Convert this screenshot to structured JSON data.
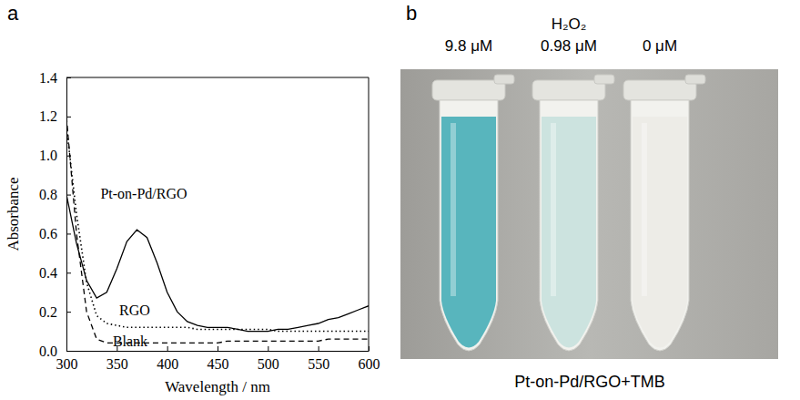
{
  "chart_data": {
    "type": "line",
    "panel_label": "a",
    "x_label": "Wavelength / nm",
    "y_label": "Absorbance",
    "x": [
      300,
      310,
      320,
      330,
      340,
      350,
      360,
      370,
      380,
      390,
      400,
      410,
      420,
      430,
      440,
      450,
      460,
      470,
      480,
      490,
      500,
      510,
      520,
      530,
      540,
      550,
      560,
      570,
      580,
      590,
      600
    ],
    "series": [
      {
        "name": "Pt-on-Pd/RGO",
        "color": "#000000",
        "line_style": "solid",
        "values": [
          0.8,
          0.55,
          0.36,
          0.27,
          0.3,
          0.42,
          0.56,
          0.62,
          0.58,
          0.45,
          0.3,
          0.2,
          0.15,
          0.13,
          0.12,
          0.12,
          0.12,
          0.11,
          0.1,
          0.1,
          0.1,
          0.11,
          0.11,
          0.12,
          0.13,
          0.14,
          0.16,
          0.17,
          0.19,
          0.21,
          0.23
        ]
      },
      {
        "name": "RGO",
        "color": "#000000",
        "line_style": "dotted",
        "values": [
          1.15,
          0.7,
          0.35,
          0.18,
          0.14,
          0.13,
          0.12,
          0.12,
          0.12,
          0.12,
          0.12,
          0.12,
          0.12,
          0.11,
          0.11,
          0.11,
          0.11,
          0.11,
          0.11,
          0.11,
          0.11,
          0.1,
          0.1,
          0.1,
          0.1,
          0.1,
          0.1,
          0.1,
          0.1,
          0.1,
          0.1
        ]
      },
      {
        "name": "Blank",
        "color": "#000000",
        "line_style": "dashed",
        "values": [
          1.2,
          0.6,
          0.2,
          0.06,
          0.04,
          0.04,
          0.04,
          0.04,
          0.04,
          0.04,
          0.04,
          0.04,
          0.04,
          0.04,
          0.04,
          0.04,
          0.05,
          0.05,
          0.05,
          0.05,
          0.05,
          0.05,
          0.05,
          0.05,
          0.05,
          0.05,
          0.06,
          0.06,
          0.06,
          0.06,
          0.06
        ]
      }
    ],
    "xlim": [
      300,
      600
    ],
    "xticks": [
      300,
      350,
      400,
      450,
      500,
      550,
      600
    ],
    "ylim": [
      0,
      1.4
    ],
    "yticks": [
      {
        "value": 0,
        "label": "0.0"
      },
      0.2,
      0.4,
      0.6,
      0.8,
      {
        "value": 1,
        "label": "1.0"
      },
      1.2,
      1.4
    ]
  },
  "photo": {
    "panel_label": "b",
    "header": "H₂O₂",
    "caption": "Pt-on-Pd/RGO+TMB",
    "tubes": [
      {
        "label": "9.8 μM",
        "color": "#4fb1b9"
      },
      {
        "label": "0.98 μM",
        "color": "#c9e2dd"
      },
      {
        "label": "0 μM",
        "color": "#ecebe6"
      }
    ]
  }
}
